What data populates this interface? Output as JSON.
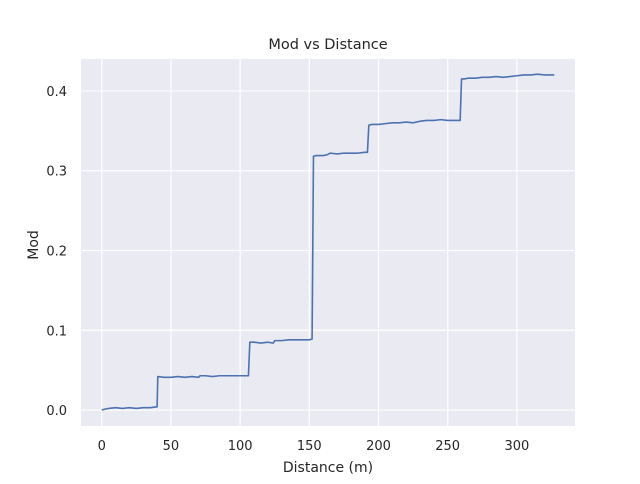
{
  "chart_data": {
    "type": "line",
    "title": "Mod vs Distance",
    "xlabel": "Distance (m)",
    "ylabel": "Mod",
    "xlim": [
      -15,
      342
    ],
    "ylim": [
      -0.02,
      0.44
    ],
    "xticks": [
      0,
      50,
      100,
      150,
      200,
      250,
      300
    ],
    "xtick_labels": [
      "0",
      "50",
      "100",
      "150",
      "200",
      "250",
      "300"
    ],
    "yticks": [
      0.0,
      0.1,
      0.2,
      0.3,
      0.4
    ],
    "ytick_labels": [
      "0.0",
      "0.1",
      "0.2",
      "0.3",
      "0.4"
    ],
    "grid": true,
    "series": [
      {
        "color": "#4c72b0",
        "x": [
          0,
          2,
          5,
          10,
          15,
          20,
          25,
          30,
          35,
          40,
          40.5,
          45,
          50,
          55,
          60,
          65,
          70,
          71,
          75,
          80,
          85,
          90,
          95,
          100,
          106,
          107,
          110,
          115,
          120,
          124,
          125,
          130,
          135,
          140,
          145,
          150,
          152,
          153,
          155,
          160,
          163,
          165,
          170,
          175,
          180,
          185,
          190,
          192,
          193,
          195,
          200,
          205,
          210,
          215,
          220,
          225,
          230,
          235,
          240,
          245,
          250,
          255,
          259,
          260,
          262,
          265,
          270,
          275,
          280,
          285,
          290,
          295,
          300,
          305,
          310,
          315,
          320,
          325,
          327
        ],
        "y": [
          0.0,
          0.001,
          0.002,
          0.003,
          0.002,
          0.003,
          0.002,
          0.003,
          0.003,
          0.004,
          0.042,
          0.041,
          0.041,
          0.042,
          0.041,
          0.042,
          0.041,
          0.043,
          0.043,
          0.042,
          0.043,
          0.043,
          0.043,
          0.043,
          0.043,
          0.085,
          0.085,
          0.084,
          0.085,
          0.084,
          0.087,
          0.087,
          0.088,
          0.088,
          0.088,
          0.088,
          0.089,
          0.318,
          0.319,
          0.319,
          0.32,
          0.322,
          0.321,
          0.322,
          0.322,
          0.322,
          0.323,
          0.323,
          0.357,
          0.358,
          0.358,
          0.359,
          0.36,
          0.36,
          0.361,
          0.36,
          0.362,
          0.363,
          0.363,
          0.364,
          0.363,
          0.363,
          0.363,
          0.415,
          0.415,
          0.416,
          0.416,
          0.417,
          0.417,
          0.418,
          0.417,
          0.418,
          0.419,
          0.42,
          0.42,
          0.421,
          0.42,
          0.42,
          0.42
        ]
      }
    ]
  },
  "colors": {
    "plot_background": "#eaeaf2",
    "grid": "#ffffff",
    "line": "#4c72b0"
  }
}
